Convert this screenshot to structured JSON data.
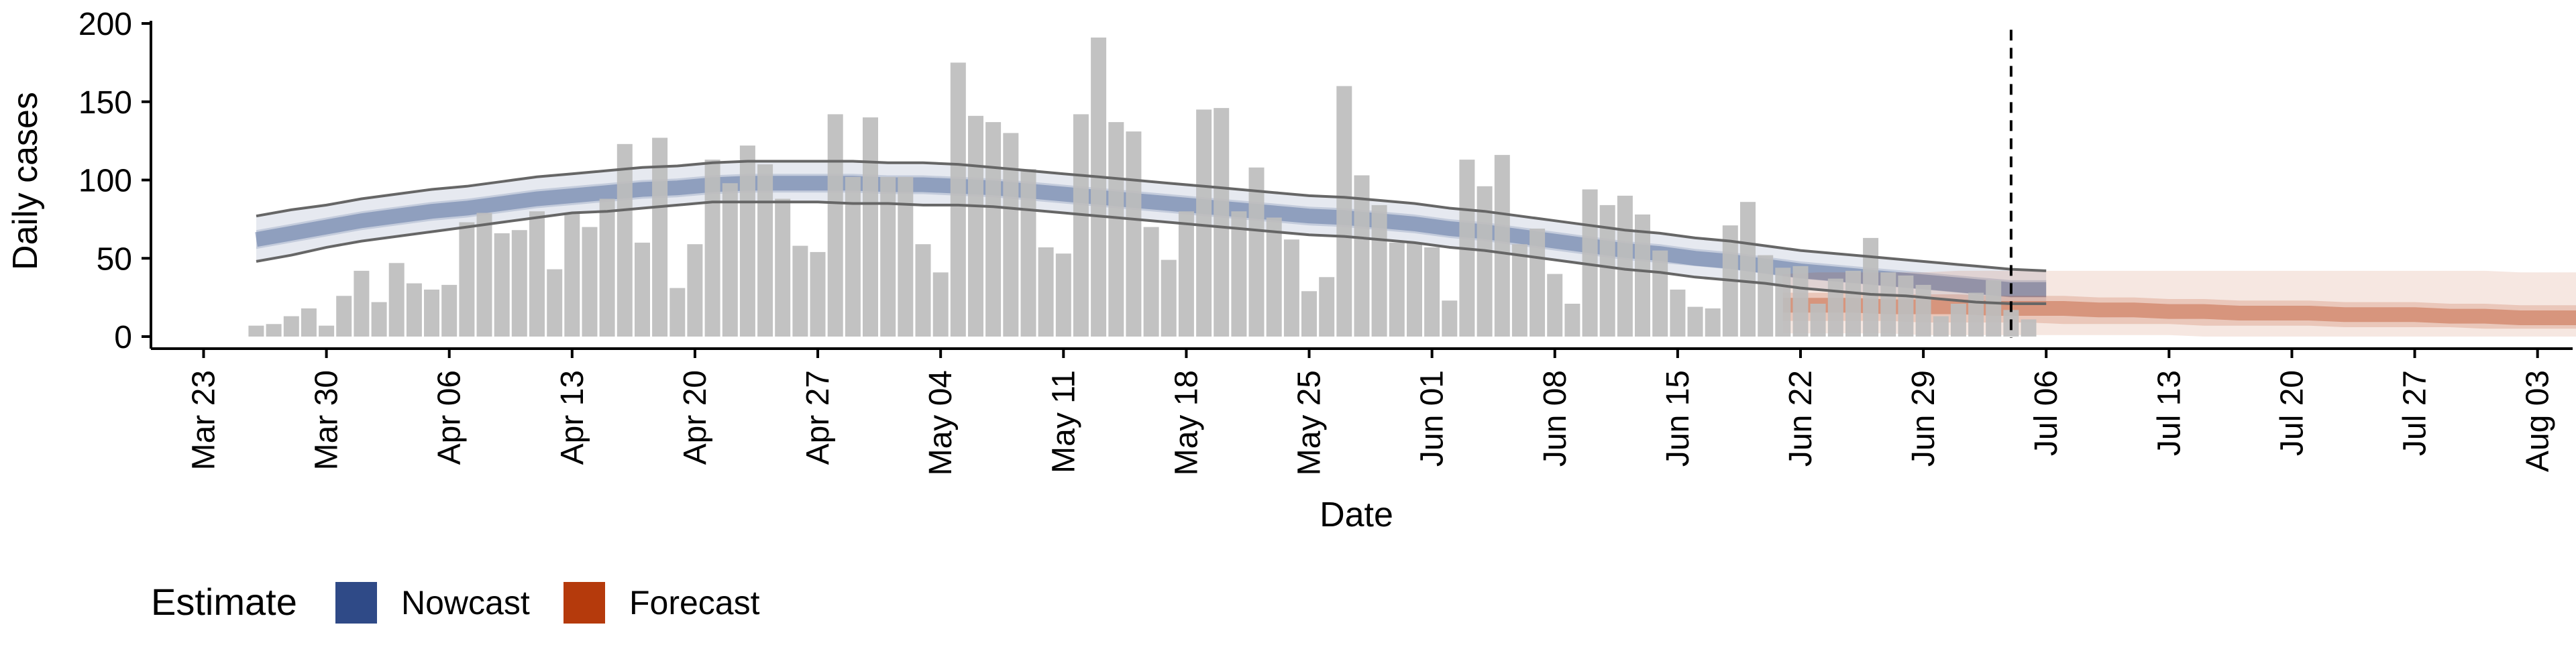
{
  "chart_data": {
    "type": "bar",
    "xlabel": "Date",
    "ylabel": "Daily cases",
    "ylim": [
      0,
      200
    ],
    "y_ticks": [
      "0",
      "50",
      "100",
      "150",
      "200"
    ],
    "x_ticks": [
      "Mar 23",
      "Mar 30",
      "Apr 06",
      "Apr 13",
      "Apr 20",
      "Apr 27",
      "May 04",
      "May 11",
      "May 18",
      "May 25",
      "Jun 01",
      "Jun 08",
      "Jun 15",
      "Jun 22",
      "Jun 29",
      "Jul 06",
      "Jul 13",
      "Jul 20",
      "Jul 27",
      "Aug 03"
    ],
    "x_range": [
      "2020-03-20",
      "2020-08-05"
    ],
    "vline_date": "2020-07-04",
    "grid": false,
    "legend_position": "bottom-left",
    "bars": {
      "start_date": "2020-03-26",
      "values": [
        7,
        8,
        13,
        18,
        7,
        26,
        42,
        22,
        47,
        34,
        30,
        33,
        73,
        79,
        66,
        68,
        80,
        43,
        79,
        70,
        88,
        123,
        60,
        127,
        31,
        59,
        113,
        98,
        122,
        110,
        88,
        58,
        54,
        142,
        102,
        140,
        102,
        102,
        59,
        41,
        175,
        141,
        137,
        130,
        107,
        57,
        53,
        142,
        191,
        137,
        131,
        70,
        49,
        80,
        145,
        146,
        80,
        108,
        76,
        62,
        29,
        38,
        160,
        103,
        84,
        60,
        60,
        57,
        23,
        113,
        96,
        116,
        59,
        69,
        40,
        21,
        94,
        84,
        90,
        78,
        55,
        30,
        19,
        18,
        71,
        86,
        52,
        44,
        45,
        21,
        37,
        42,
        63,
        41,
        39,
        33,
        13,
        21,
        28,
        36,
        17,
        11
      ]
    },
    "series": [
      {
        "name": "Nowcast",
        "start_date": "2020-03-26",
        "step_days": 2,
        "median": [
          62,
          66,
          70,
          74,
          77,
          80,
          82,
          85,
          88,
          90,
          92,
          94,
          95,
          97,
          98,
          98,
          98,
          98,
          97,
          97,
          96,
          95,
          93,
          91,
          89,
          87,
          85,
          83,
          81,
          79,
          77,
          76,
          74,
          72,
          69,
          67,
          64,
          61,
          58,
          55,
          53,
          50,
          48,
          45,
          42,
          40,
          38,
          36,
          34,
          32,
          30,
          30
        ],
        "lower_50": [
          56,
          60,
          64,
          68,
          71,
          74,
          76,
          79,
          82,
          84,
          86,
          88,
          89,
          91,
          92,
          92,
          92,
          92,
          91,
          91,
          90,
          89,
          87,
          85,
          83,
          81,
          79,
          77,
          75,
          73,
          71,
          70,
          68,
          66,
          63,
          61,
          58,
          55,
          52,
          49,
          47,
          45,
          43,
          40,
          37,
          35,
          33,
          31,
          29,
          27,
          25,
          25
        ],
        "upper_50": [
          68,
          72,
          76,
          80,
          83,
          86,
          88,
          91,
          94,
          96,
          98,
          100,
          101,
          103,
          104,
          104,
          104,
          104,
          103,
          103,
          102,
          101,
          99,
          97,
          95,
          93,
          91,
          89,
          87,
          85,
          83,
          82,
          80,
          78,
          75,
          73,
          70,
          67,
          64,
          61,
          59,
          56,
          54,
          51,
          48,
          46,
          44,
          42,
          40,
          38,
          36,
          36
        ],
        "lower_90": [
          48,
          52,
          57,
          61,
          64,
          67,
          70,
          73,
          76,
          79,
          80,
          82,
          84,
          86,
          86,
          86,
          86,
          85,
          85,
          84,
          84,
          83,
          81,
          79,
          77,
          75,
          73,
          71,
          69,
          67,
          65,
          64,
          62,
          60,
          57,
          55,
          52,
          49,
          46,
          43,
          41,
          38,
          36,
          34,
          31,
          29,
          27,
          26,
          24,
          22,
          21,
          21
        ],
        "upper_90": [
          77,
          81,
          84,
          88,
          91,
          94,
          96,
          99,
          102,
          104,
          106,
          108,
          109,
          111,
          112,
          112,
          112,
          112,
          111,
          111,
          110,
          108,
          106,
          104,
          102,
          100,
          98,
          96,
          94,
          92,
          90,
          89,
          87,
          85,
          82,
          80,
          77,
          74,
          71,
          68,
          66,
          63,
          61,
          58,
          55,
          53,
          51,
          49,
          47,
          45,
          43,
          42
        ]
      },
      {
        "name": "Forecast",
        "start_date": "2020-06-21",
        "step_days": 2,
        "median": [
          20,
          20,
          20,
          19,
          19,
          19,
          18,
          18,
          18,
          17,
          17,
          16,
          16,
          15,
          15,
          15,
          14,
          14,
          14,
          13,
          13,
          12,
          12,
          12,
          11,
          11,
          11
        ],
        "lower_50": [
          10,
          10,
          10,
          10,
          9,
          9,
          9,
          9,
          8,
          8,
          8,
          8,
          7,
          7,
          7,
          7,
          6,
          6,
          6,
          6,
          5,
          5,
          5,
          5,
          5,
          5,
          5
        ],
        "upper_50": [
          28,
          28,
          28,
          27,
          27,
          27,
          26,
          26,
          26,
          25,
          25,
          24,
          24,
          23,
          23,
          23,
          22,
          22,
          22,
          21,
          21,
          20,
          20,
          20,
          19,
          19,
          19
        ],
        "lower_90": [
          2,
          2,
          2,
          2,
          1,
          1,
          1,
          1,
          1,
          1,
          1,
          1,
          0,
          0,
          0,
          0,
          0,
          0,
          0,
          0,
          0,
          0,
          0,
          0,
          0,
          0,
          0
        ],
        "upper_90": [
          40,
          41,
          41,
          41,
          41,
          42,
          42,
          42,
          42,
          42,
          42,
          42,
          42,
          42,
          42,
          42,
          42,
          42,
          42,
          42,
          42,
          41,
          41,
          41,
          41,
          41,
          41
        ]
      }
    ],
    "legend": {
      "title": "Estimate",
      "entries": [
        {
          "label": "Nowcast",
          "color": "#2f4a87"
        },
        {
          "label": "Forecast",
          "color": "#b53a0c"
        }
      ]
    },
    "colors": {
      "bars": "#bdbdbd",
      "nowcast": "#2f4a87",
      "forecast": "#b53a0c",
      "outline": "#666666",
      "vline": "#000000"
    }
  }
}
